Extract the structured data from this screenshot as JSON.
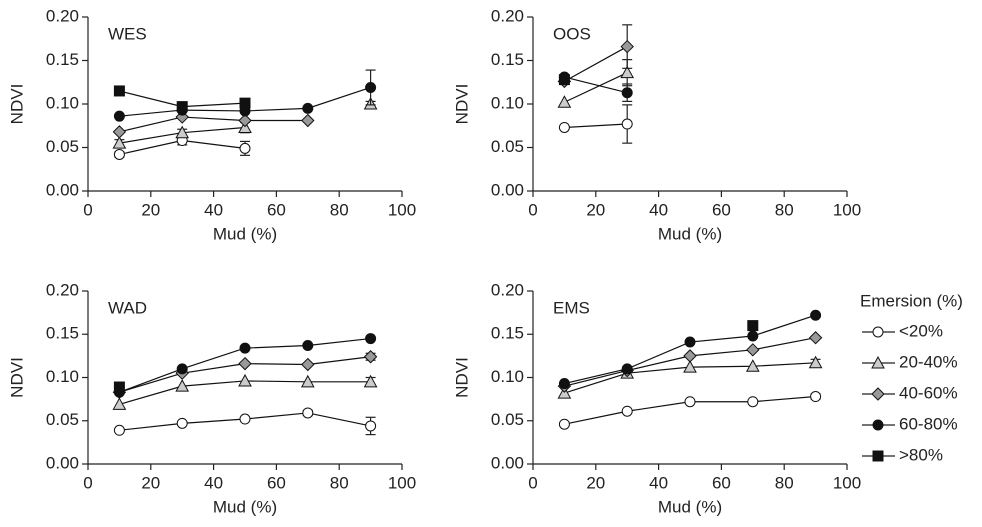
{
  "chart_data": [
    {
      "type": "line",
      "title": "WES",
      "x": [
        10,
        30,
        50,
        70,
        90
      ],
      "x_label": "Mud (%)",
      "y_label": "NDVI",
      "xlim": [
        0,
        100
      ],
      "xticks": [
        0,
        20,
        40,
        60,
        80,
        100
      ],
      "ylim": [
        0,
        0.2
      ],
      "yticks": [
        {
          "value": 0,
          "label": "0.00"
        },
        {
          "value": 0.05,
          "label": "0.05"
        },
        {
          "value": 0.1,
          "label": "0.10"
        },
        {
          "value": 0.15,
          "label": "0.15"
        },
        {
          "value": 0.2,
          "label": "0.20"
        }
      ],
      "series": [
        {
          "name": "<20%",
          "color": "#ffffff",
          "marker": "circle",
          "values": [
            0.042,
            0.058,
            0.049,
            null,
            null
          ],
          "errors": [
            0.003,
            0.005,
            0.008,
            null,
            null
          ]
        },
        {
          "name": "20-40%",
          "color": "#cccccc",
          "marker": "triangle",
          "values": [
            0.055,
            0.067,
            0.073,
            null,
            0.1
          ],
          "errors": [
            0.004,
            0.004,
            0.006,
            null,
            0.003
          ]
        },
        {
          "name": "40-60%",
          "color": "#999999",
          "marker": "diamond",
          "values": [
            0.068,
            0.085,
            0.081,
            0.081,
            null
          ],
          "errors": [
            null,
            null,
            null,
            null,
            null
          ]
        },
        {
          "name": "60-80%",
          "color": "#111111",
          "marker": "circle",
          "values": [
            0.086,
            0.093,
            0.092,
            0.095,
            0.119
          ],
          "errors": [
            null,
            null,
            null,
            null,
            0.02
          ]
        },
        {
          "name": ">80%",
          "color": "#111111",
          "marker": "square",
          "values": [
            0.115,
            0.097,
            0.101,
            null,
            null
          ],
          "errors": [
            null,
            null,
            null,
            null,
            null
          ]
        }
      ]
    },
    {
      "type": "line",
      "title": "OOS",
      "x": [
        10,
        30
      ],
      "x_label": "Mud (%)",
      "y_label": "NDVI",
      "xlim": [
        0,
        100
      ],
      "xticks": [
        0,
        20,
        40,
        60,
        80,
        100
      ],
      "ylim": [
        0,
        0.2
      ],
      "yticks": [
        {
          "value": 0,
          "label": "0.00"
        },
        {
          "value": 0.05,
          "label": "0.05"
        },
        {
          "value": 0.1,
          "label": "0.10"
        },
        {
          "value": 0.15,
          "label": "0.15"
        },
        {
          "value": 0.2,
          "label": "0.20"
        }
      ],
      "series": [
        {
          "name": "<20%",
          "color": "#ffffff",
          "marker": "circle",
          "values": [
            0.073,
            0.077
          ],
          "errors": [
            null,
            0.022
          ]
        },
        {
          "name": "20-40%",
          "color": "#cccccc",
          "marker": "triangle",
          "values": [
            0.102,
            0.136
          ],
          "errors": [
            null,
            0.015
          ]
        },
        {
          "name": "40-60%",
          "color": "#999999",
          "marker": "diamond",
          "values": [
            0.126,
            0.166
          ],
          "errors": [
            null,
            0.025
          ]
        },
        {
          "name": "60-80%",
          "color": "#111111",
          "marker": "circle",
          "values": [
            0.131,
            0.113
          ],
          "errors": [
            null,
            0.01
          ]
        },
        {
          "name": ">80%",
          "color": "#111111",
          "marker": "square",
          "values": [
            0.128,
            null
          ],
          "errors": [
            null,
            null
          ]
        }
      ]
    },
    {
      "type": "line",
      "title": "WAD",
      "x": [
        10,
        30,
        50,
        70,
        90
      ],
      "x_label": "Mud (%)",
      "y_label": "NDVI",
      "xlim": [
        0,
        100
      ],
      "xticks": [
        0,
        20,
        40,
        60,
        80,
        100
      ],
      "ylim": [
        0,
        0.2
      ],
      "yticks": [
        {
          "value": 0,
          "label": "0.00"
        },
        {
          "value": 0.05,
          "label": "0.05"
        },
        {
          "value": 0.1,
          "label": "0.10"
        },
        {
          "value": 0.15,
          "label": "0.15"
        },
        {
          "value": 0.2,
          "label": "0.20"
        }
      ],
      "series": [
        {
          "name": "<20%",
          "color": "#ffffff",
          "marker": "circle",
          "values": [
            0.039,
            0.047,
            0.052,
            0.059,
            0.044
          ],
          "errors": [
            null,
            null,
            null,
            0.003,
            0.01
          ]
        },
        {
          "name": "20-40%",
          "color": "#cccccc",
          "marker": "triangle",
          "values": [
            0.069,
            0.09,
            0.096,
            0.095,
            0.095
          ],
          "errors": [
            null,
            null,
            null,
            null,
            0.005
          ]
        },
        {
          "name": "40-60%",
          "color": "#999999",
          "marker": "diamond",
          "values": [
            0.083,
            0.105,
            0.116,
            0.115,
            0.124
          ],
          "errors": [
            null,
            null,
            null,
            null,
            0.004
          ]
        },
        {
          "name": "60-80%",
          "color": "#111111",
          "marker": "circle",
          "values": [
            0.083,
            0.11,
            0.134,
            0.137,
            0.145
          ],
          "errors": [
            null,
            null,
            null,
            null,
            null
          ]
        },
        {
          "name": ">80%",
          "color": "#111111",
          "marker": "square",
          "values": [
            0.089,
            null,
            null,
            null,
            null
          ],
          "errors": [
            null,
            null,
            null,
            null,
            null
          ]
        }
      ]
    },
    {
      "type": "line",
      "title": "EMS",
      "x": [
        10,
        30,
        50,
        70,
        90
      ],
      "x_label": "Mud (%)",
      "y_label": "NDVI",
      "xlim": [
        0,
        100
      ],
      "xticks": [
        0,
        20,
        40,
        60,
        80,
        100
      ],
      "ylim": [
        0,
        0.2
      ],
      "yticks": [
        {
          "value": 0,
          "label": "0.00"
        },
        {
          "value": 0.05,
          "label": "0.05"
        },
        {
          "value": 0.1,
          "label": "0.10"
        },
        {
          "value": 0.15,
          "label": "0.15"
        },
        {
          "value": 0.2,
          "label": "0.20"
        }
      ],
      "legend_title": "Emersion (%)",
      "series": [
        {
          "name": "<20%",
          "color": "#ffffff",
          "marker": "circle",
          "values": [
            0.046,
            0.061,
            0.072,
            0.072,
            0.078
          ],
          "errors": [
            null,
            null,
            null,
            null,
            0.003
          ]
        },
        {
          "name": "20-40%",
          "color": "#cccccc",
          "marker": "triangle",
          "values": [
            0.082,
            0.105,
            0.112,
            0.113,
            0.117
          ],
          "errors": [
            null,
            null,
            null,
            null,
            0.004
          ]
        },
        {
          "name": "40-60%",
          "color": "#999999",
          "marker": "diamond",
          "values": [
            0.09,
            0.108,
            0.125,
            0.132,
            0.146
          ],
          "errors": [
            null,
            null,
            null,
            null,
            null
          ]
        },
        {
          "name": "60-80%",
          "color": "#111111",
          "marker": "circle",
          "values": [
            0.093,
            0.11,
            0.141,
            0.148,
            0.172
          ],
          "errors": [
            null,
            null,
            null,
            null,
            null
          ]
        },
        {
          "name": ">80%",
          "color": "#111111",
          "marker": "square",
          "values": [
            null,
            null,
            null,
            0.16,
            null
          ],
          "errors": [
            null,
            null,
            null,
            null,
            null
          ]
        }
      ]
    }
  ]
}
